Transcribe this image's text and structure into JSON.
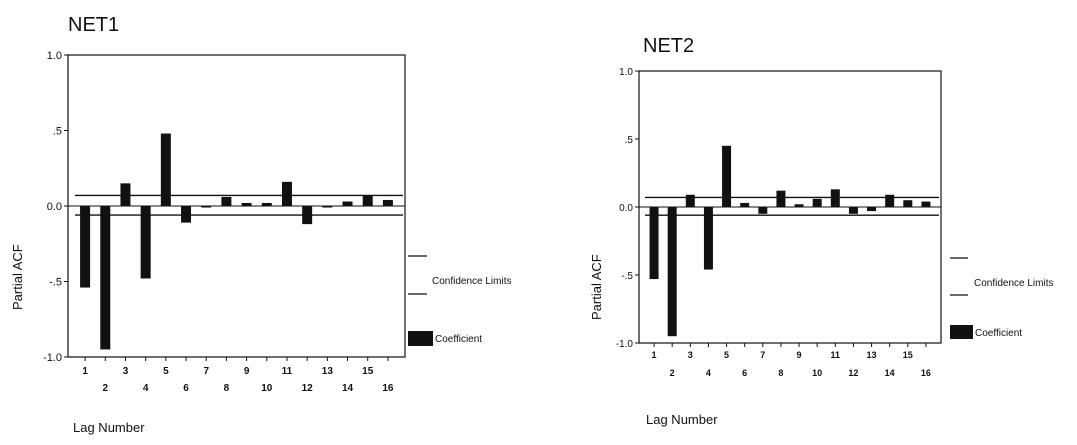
{
  "chart_data": [
    {
      "type": "bar",
      "title": "NET1",
      "xlabel": "Lag Number",
      "ylabel": "Partial ACF",
      "ylim": [
        -1.0,
        1.0
      ],
      "yticks": [
        "1.0",
        ".5",
        "0.0",
        "-.5",
        "-1.0"
      ],
      "ytick_values": [
        1.0,
        0.5,
        0.0,
        -0.5,
        -1.0
      ],
      "categories": [
        "1",
        "2",
        "3",
        "4",
        "5",
        "6",
        "7",
        "8",
        "9",
        "10",
        "11",
        "12",
        "13",
        "14",
        "15",
        "16"
      ],
      "series": [
        {
          "values": [
            -0.54,
            -0.95,
            0.15,
            -0.48,
            0.48,
            -0.11,
            -0.01,
            0.06,
            0.02,
            0.02,
            0.16,
            -0.12,
            0.0,
            0.03,
            0.07,
            0.04
          ]
        }
      ],
      "confidence_limits": [
        -0.06,
        0.07
      ],
      "legend": {
        "limits_label": "Confidence Limits",
        "coef_label": "Coefficient",
        "position": "right"
      },
      "colors": {
        "bar": "#111111"
      }
    },
    {
      "type": "bar",
      "title": "NET2",
      "xlabel": "Lag Number",
      "ylabel": "Partial ACF",
      "ylim": [
        -1.0,
        1.0
      ],
      "yticks": [
        "1.0",
        ".5",
        "0.0",
        "-.5",
        "-1.0"
      ],
      "ytick_values": [
        1.0,
        0.5,
        0.0,
        -0.5,
        -1.0
      ],
      "categories": [
        "1",
        "2",
        "3",
        "4",
        "5",
        "6",
        "7",
        "8",
        "9",
        "10",
        "11",
        "12",
        "13",
        "14",
        "15",
        "16"
      ],
      "series": [
        {
          "values": [
            -0.53,
            -0.95,
            0.09,
            -0.46,
            0.45,
            0.03,
            -0.05,
            0.12,
            0.02,
            0.06,
            0.13,
            -0.05,
            -0.03,
            0.09,
            0.05,
            0.04
          ]
        }
      ],
      "confidence_limits": [
        -0.06,
        0.07
      ],
      "legend": {
        "limits_label": "Confidence Limits",
        "coef_label": "Coefficient",
        "position": "right"
      },
      "colors": {
        "bar": "#111111"
      }
    }
  ]
}
